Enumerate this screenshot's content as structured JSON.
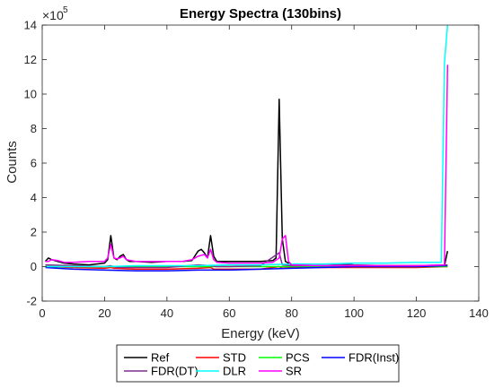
{
  "chart_data": {
    "type": "line",
    "title": "Energy Spectra (130bins)",
    "xlabel": "Energy (keV)",
    "ylabel": "Counts",
    "y_exponent_base": "×10",
    "y_exponent_power": "5",
    "xlim": [
      0,
      140
    ],
    "ylim": [
      -2,
      14
    ],
    "x_ticks": [
      0,
      20,
      40,
      60,
      80,
      100,
      120,
      140
    ],
    "y_ticks": [
      -2,
      0,
      2,
      4,
      6,
      8,
      10,
      12,
      14
    ],
    "grid": false,
    "legend_position": "bottom-outside",
    "series": [
      {
        "name": "Ref",
        "color": "#000000",
        "points": [
          [
            1,
            0.3
          ],
          [
            2,
            0.5
          ],
          [
            3,
            0.4
          ],
          [
            5,
            0.3
          ],
          [
            7,
            0.2
          ],
          [
            10,
            0.15
          ],
          [
            15,
            0.1
          ],
          [
            20,
            0.2
          ],
          [
            21,
            0.4
          ],
          [
            22,
            1.8
          ],
          [
            23,
            0.5
          ],
          [
            24,
            0.4
          ],
          [
            25,
            0.6
          ],
          [
            26,
            0.7
          ],
          [
            27,
            0.4
          ],
          [
            28,
            0.3
          ],
          [
            30,
            0.3
          ],
          [
            35,
            0.25
          ],
          [
            40,
            0.3
          ],
          [
            45,
            0.3
          ],
          [
            48,
            0.35
          ],
          [
            50,
            0.9
          ],
          [
            51,
            1.0
          ],
          [
            52,
            0.8
          ],
          [
            53,
            0.5
          ],
          [
            54,
            1.8
          ],
          [
            55,
            0.6
          ],
          [
            56,
            0.3
          ],
          [
            60,
            0.3
          ],
          [
            65,
            0.3
          ],
          [
            70,
            0.3
          ],
          [
            74,
            0.35
          ],
          [
            75,
            0.5
          ],
          [
            76,
            9.7
          ],
          [
            77,
            1.6
          ],
          [
            78,
            0.3
          ],
          [
            80,
            0.1
          ],
          [
            90,
            0.05
          ],
          [
            98,
            0.1
          ],
          [
            100,
            0.08
          ],
          [
            110,
            0.05
          ],
          [
            120,
            0.05
          ],
          [
            125,
            0.05
          ],
          [
            129,
            0.05
          ],
          [
            130,
            0.9
          ]
        ]
      },
      {
        "name": "STD",
        "color": "#ff0000",
        "points": [
          [
            1,
            0.0
          ],
          [
            10,
            -0.05
          ],
          [
            20,
            -0.1
          ],
          [
            22,
            -0.05
          ],
          [
            23,
            -0.1
          ],
          [
            30,
            -0.15
          ],
          [
            40,
            -0.15
          ],
          [
            50,
            -0.1
          ],
          [
            54,
            -0.05
          ],
          [
            55,
            -0.15
          ],
          [
            60,
            -0.15
          ],
          [
            70,
            -0.15
          ],
          [
            76,
            0.0
          ],
          [
            77,
            -0.1
          ],
          [
            80,
            -0.05
          ],
          [
            90,
            -0.05
          ],
          [
            100,
            -0.05
          ],
          [
            110,
            -0.05
          ],
          [
            120,
            -0.05
          ],
          [
            130,
            0.0
          ]
        ]
      },
      {
        "name": "PCS",
        "color": "#00ff00",
        "points": [
          [
            1,
            0.0
          ],
          [
            10,
            0.0
          ],
          [
            20,
            0.0
          ],
          [
            30,
            0.0
          ],
          [
            40,
            0.0
          ],
          [
            50,
            0.0
          ],
          [
            60,
            0.0
          ],
          [
            70,
            0.0
          ],
          [
            80,
            0.0
          ],
          [
            90,
            0.0
          ],
          [
            100,
            0.0
          ],
          [
            110,
            0.0
          ],
          [
            120,
            0.0
          ],
          [
            130,
            0.0
          ]
        ]
      },
      {
        "name": "FDR(Inst)",
        "color": "#0000ff",
        "points": [
          [
            1,
            -0.05
          ],
          [
            5,
            -0.1
          ],
          [
            10,
            -0.15
          ],
          [
            20,
            -0.2
          ],
          [
            30,
            -0.25
          ],
          [
            40,
            -0.25
          ],
          [
            50,
            -0.2
          ],
          [
            60,
            -0.2
          ],
          [
            70,
            -0.15
          ],
          [
            80,
            -0.1
          ],
          [
            90,
            -0.05
          ],
          [
            100,
            0.0
          ],
          [
            110,
            0.0
          ],
          [
            120,
            0.0
          ],
          [
            130,
            0.05
          ]
        ]
      },
      {
        "name": "FDR(DT)",
        "color": "#7e2f8e",
        "points": [
          [
            1,
            0.1
          ],
          [
            10,
            0.05
          ],
          [
            20,
            0.0
          ],
          [
            22,
            0.05
          ],
          [
            24,
            -0.05
          ],
          [
            30,
            -0.05
          ],
          [
            40,
            -0.05
          ],
          [
            50,
            0.1
          ],
          [
            54,
            0.05
          ],
          [
            56,
            0.0
          ],
          [
            60,
            0.0
          ],
          [
            70,
            0.05
          ],
          [
            76,
            0.8
          ],
          [
            77,
            0.1
          ],
          [
            80,
            0.05
          ],
          [
            90,
            0.05
          ],
          [
            98,
            0.15
          ],
          [
            100,
            0.1
          ],
          [
            110,
            0.05
          ],
          [
            120,
            0.05
          ],
          [
            130,
            0.1
          ]
        ]
      },
      {
        "name": "DLR",
        "color": "#00ffff",
        "points": [
          [
            1,
            0.0
          ],
          [
            10,
            0.0
          ],
          [
            20,
            0.0
          ],
          [
            30,
            0.05
          ],
          [
            40,
            0.05
          ],
          [
            50,
            0.05
          ],
          [
            60,
            0.1
          ],
          [
            70,
            0.1
          ],
          [
            80,
            0.15
          ],
          [
            90,
            0.15
          ],
          [
            100,
            0.2
          ],
          [
            110,
            0.2
          ],
          [
            120,
            0.25
          ],
          [
            128,
            0.25
          ],
          [
            129,
            11.8
          ],
          [
            130,
            14.0
          ]
        ]
      },
      {
        "name": "SR",
        "color": "#ff00ff",
        "points": [
          [
            1,
            0.3
          ],
          [
            2,
            0.3
          ],
          [
            3,
            0.4
          ],
          [
            5,
            0.35
          ],
          [
            7,
            0.25
          ],
          [
            10,
            0.25
          ],
          [
            15,
            0.3
          ],
          [
            20,
            0.3
          ],
          [
            21,
            0.5
          ],
          [
            22,
            1.3
          ],
          [
            23,
            0.5
          ],
          [
            24,
            0.45
          ],
          [
            25,
            0.5
          ],
          [
            26,
            0.6
          ],
          [
            27,
            0.4
          ],
          [
            30,
            0.3
          ],
          [
            40,
            0.3
          ],
          [
            45,
            0.3
          ],
          [
            48,
            0.4
          ],
          [
            50,
            0.6
          ],
          [
            52,
            0.7
          ],
          [
            53,
            0.5
          ],
          [
            54,
            1.0
          ],
          [
            55,
            0.4
          ],
          [
            56,
            0.25
          ],
          [
            60,
            0.2
          ],
          [
            70,
            0.2
          ],
          [
            74,
            0.25
          ],
          [
            76,
            0.5
          ],
          [
            77,
            1.6
          ],
          [
            78,
            1.8
          ],
          [
            79,
            0.3
          ],
          [
            80,
            0.1
          ],
          [
            90,
            0.05
          ],
          [
            100,
            0.05
          ],
          [
            110,
            0.05
          ],
          [
            120,
            0.05
          ],
          [
            129,
            0.1
          ],
          [
            130,
            11.7
          ]
        ]
      }
    ]
  }
}
